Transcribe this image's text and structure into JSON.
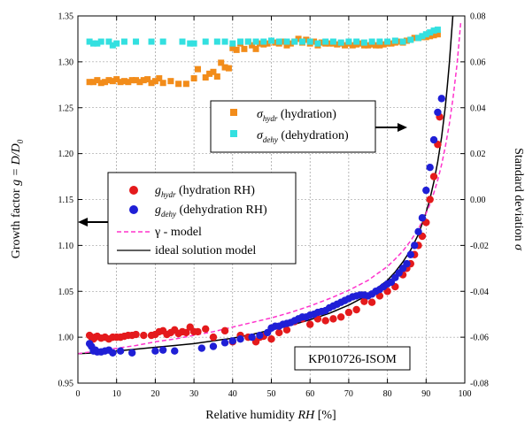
{
  "chart_data": {
    "type": "scatter",
    "xlabel": {
      "pre": "Relative humidity ",
      "var": "RH",
      "post": " [%]"
    },
    "ylabel_left": {
      "pre": "Growth factor  ",
      "var": "g",
      "mid": " = D/D",
      "sub": "0"
    },
    "ylabel_right": {
      "pre": "Standard deviation  ",
      "var": "σ"
    },
    "xlim": [
      0,
      100
    ],
    "ylim_left": [
      0.95,
      1.35
    ],
    "ylim_right": [
      -0.08,
      0.08
    ],
    "x_ticks": [
      "0",
      "10",
      "20",
      "30",
      "40",
      "50",
      "60",
      "70",
      "80",
      "90",
      "100"
    ],
    "y_left_ticks": [
      "0.95",
      "1.00",
      "1.05",
      "1.10",
      "1.15",
      "1.20",
      "1.25",
      "1.30",
      "1.35"
    ],
    "y_right_ticks": [
      "-0.08",
      "-0.06",
      "-0.04",
      "-0.02",
      "0.00",
      "0.02",
      "0.04",
      "0.06",
      "0.08"
    ],
    "grid": true,
    "annotation": "KP010726-ISOM",
    "colors": {
      "red": "#e41a1c",
      "blue": "#1f1fd6",
      "orange": "#f28c1a",
      "cyan": "#33e0e0",
      "magenta": "#ff33cc",
      "black": "#000000"
    },
    "legend_sigma": [
      {
        "sym": "σ",
        "sub": "hydr",
        "text": " (hydration)"
      },
      {
        "sym": "σ",
        "sub": "dehy",
        "text": " (dehydration)"
      }
    ],
    "legend_g": [
      {
        "sym": "g",
        "sub": "hydr",
        "text": " (hydration RH)"
      },
      {
        "sym": "g",
        "sub": "dehy",
        "text": " (dehydration RH)"
      },
      {
        "text": "γ - model"
      },
      {
        "text": "ideal solution model"
      }
    ],
    "series": [
      {
        "name": "g_hydr",
        "axis": "left",
        "marker": "circle",
        "color": "#e41a1c",
        "x": [
          3,
          3.5,
          4,
          4.5,
          5,
          6,
          7,
          8,
          9,
          10,
          11,
          12,
          13,
          14,
          15,
          17,
          19,
          20,
          21,
          22,
          23,
          24,
          25,
          26,
          27,
          28,
          29,
          30,
          31,
          33,
          35,
          38,
          40,
          42,
          44,
          46,
          47,
          48,
          50,
          52,
          54,
          56,
          58,
          60,
          62,
          64,
          66,
          68,
          70,
          72,
          74,
          76,
          78,
          80,
          82,
          84,
          85,
          86,
          87,
          88,
          89,
          90,
          91,
          92,
          93,
          93.5
        ],
        "y": [
          1.002,
          1.0,
          0.998,
          1.0,
          1.001,
          0.999,
          1.0,
          0.998,
          1.0,
          1.0,
          1.0,
          1.001,
          1.002,
          1.002,
          1.003,
          1.002,
          1.002,
          1.003,
          1.006,
          1.007,
          1.003,
          1.005,
          1.008,
          1.004,
          1.006,
          1.005,
          1.011,
          1.006,
          1.006,
          1.009,
          1.0,
          1.007,
          0.995,
          1.002,
          1.0,
          0.995,
          1.0,
          1.001,
          0.998,
          1.005,
          1.008,
          1.017,
          1.02,
          1.014,
          1.02,
          1.018,
          1.02,
          1.022,
          1.027,
          1.03,
          1.039,
          1.038,
          1.045,
          1.05,
          1.055,
          1.068,
          1.075,
          1.08,
          1.09,
          1.1,
          1.11,
          1.125,
          1.15,
          1.175,
          1.21,
          1.24
        ]
      },
      {
        "name": "g_dehy",
        "axis": "left",
        "marker": "circle",
        "color": "#1f1fd6",
        "x": [
          3,
          3.5,
          4,
          4.5,
          5,
          6,
          7,
          8,
          9,
          11,
          14,
          20,
          22,
          25,
          32,
          35,
          38,
          40,
          42,
          45,
          47,
          49,
          50,
          51,
          52,
          53,
          54,
          55,
          56,
          57,
          58,
          59,
          60,
          61,
          62,
          63,
          64,
          65,
          66,
          67,
          68,
          69,
          70,
          71,
          72,
          73,
          74,
          75,
          76,
          77,
          78,
          79,
          80,
          81,
          82,
          83,
          84,
          85,
          86,
          87,
          88,
          89,
          90,
          91,
          92,
          93,
          94
        ],
        "y": [
          0.993,
          0.99,
          0.985,
          0.986,
          0.984,
          0.984,
          0.985,
          0.986,
          0.983,
          0.985,
          0.983,
          0.985,
          0.986,
          0.985,
          0.988,
          0.99,
          0.994,
          0.996,
          0.998,
          1.0,
          1.002,
          1.005,
          1.01,
          1.012,
          1.012,
          1.014,
          1.015,
          1.016,
          1.018,
          1.02,
          1.022,
          1.022,
          1.024,
          1.025,
          1.027,
          1.028,
          1.029,
          1.032,
          1.034,
          1.036,
          1.038,
          1.04,
          1.042,
          1.044,
          1.045,
          1.046,
          1.046,
          1.045,
          1.047,
          1.05,
          1.052,
          1.055,
          1.058,
          1.06,
          1.065,
          1.07,
          1.075,
          1.08,
          1.09,
          1.1,
          1.115,
          1.13,
          1.16,
          1.185,
          1.215,
          1.245,
          1.26
        ]
      },
      {
        "name": "sigma_hydr",
        "axis": "right",
        "marker": "square",
        "color": "#f28c1a",
        "x": [
          3,
          4,
          5,
          6,
          7,
          8,
          9,
          10,
          11,
          12,
          13,
          14,
          15,
          16,
          17,
          18,
          19,
          20,
          21,
          22,
          24,
          26,
          28,
          30,
          31,
          33,
          34,
          35,
          36,
          37,
          38,
          39,
          40,
          41,
          42,
          43,
          44,
          45,
          46,
          47,
          48,
          49,
          50,
          51,
          52,
          53,
          54,
          55,
          56,
          57,
          58,
          59,
          60,
          61,
          62,
          63,
          64,
          65,
          66,
          67,
          68,
          69,
          70,
          71,
          72,
          73,
          74,
          75,
          76,
          77,
          78,
          79,
          80,
          81,
          82,
          83,
          84,
          85,
          86,
          87,
          88,
          89,
          90,
          91,
          92,
          93
        ],
        "y": [
          1.278,
          1.278,
          1.28,
          1.277,
          1.278,
          1.28,
          1.279,
          1.281,
          1.278,
          1.279,
          1.278,
          1.28,
          1.28,
          1.278,
          1.28,
          1.281,
          1.277,
          1.279,
          1.282,
          1.277,
          1.279,
          1.276,
          1.276,
          1.282,
          1.292,
          1.283,
          1.287,
          1.289,
          1.284,
          1.299,
          1.294,
          1.293,
          1.315,
          1.313,
          1.32,
          1.314,
          1.322,
          1.318,
          1.314,
          1.32,
          1.319,
          1.32,
          1.323,
          1.321,
          1.32,
          1.322,
          1.318,
          1.32,
          1.322,
          1.325,
          1.321,
          1.324,
          1.32,
          1.322,
          1.318,
          1.321,
          1.32,
          1.32,
          1.32,
          1.319,
          1.32,
          1.318,
          1.32,
          1.318,
          1.319,
          1.32,
          1.318,
          1.318,
          1.319,
          1.318,
          1.318,
          1.319,
          1.32,
          1.32,
          1.321,
          1.322,
          1.321,
          1.323,
          1.324,
          1.326,
          1.326,
          1.327,
          1.327,
          1.328,
          1.329,
          1.33
        ]
      },
      {
        "name": "sigma_dehy",
        "axis": "right",
        "marker": "square",
        "color": "#33e0e0",
        "x": [
          3,
          4,
          5,
          6,
          8,
          9,
          10,
          12,
          15,
          19,
          22,
          27,
          29,
          30,
          33,
          36,
          38,
          40,
          42,
          44,
          46,
          48,
          50,
          52,
          54,
          56,
          58,
          60,
          62,
          64,
          66,
          68,
          70,
          72,
          74,
          76,
          78,
          80,
          82,
          84,
          86,
          88,
          89,
          90,
          91,
          92,
          93
        ],
        "y": [
          1.322,
          1.32,
          1.32,
          1.322,
          1.322,
          1.318,
          1.32,
          1.322,
          1.322,
          1.322,
          1.322,
          1.322,
          1.32,
          1.32,
          1.322,
          1.322,
          1.322,
          1.32,
          1.322,
          1.322,
          1.322,
          1.322,
          1.323,
          1.322,
          1.322,
          1.322,
          1.322,
          1.322,
          1.32,
          1.322,
          1.322,
          1.321,
          1.322,
          1.322,
          1.321,
          1.322,
          1.322,
          1.322,
          1.323,
          1.322,
          1.324,
          1.326,
          1.328,
          1.33,
          1.332,
          1.334,
          1.335
        ]
      },
      {
        "name": "γ - model",
        "axis": "left",
        "marker": "dash-line",
        "color": "#ff33cc",
        "x": [
          0,
          5,
          10,
          15,
          20,
          25,
          30,
          35,
          40,
          45,
          50,
          55,
          60,
          65,
          70,
          75,
          80,
          82,
          84,
          86,
          88,
          90,
          91,
          92,
          93,
          94,
          95,
          96,
          97,
          98,
          99
        ],
        "y": [
          0.982,
          0.985,
          0.988,
          0.991,
          0.995,
          0.998,
          1.002,
          1.006,
          1.011,
          1.016,
          1.021,
          1.027,
          1.034,
          1.042,
          1.051,
          1.062,
          1.077,
          1.085,
          1.094,
          1.105,
          1.118,
          1.135,
          1.145,
          1.157,
          1.171,
          1.188,
          1.208,
          1.232,
          1.262,
          1.298,
          1.345
        ]
      },
      {
        "name": "ideal solution model",
        "axis": "left",
        "marker": "line",
        "color": "#000000",
        "x": [
          0,
          5,
          10,
          15,
          20,
          25,
          30,
          35,
          40,
          45,
          50,
          55,
          60,
          65,
          70,
          75,
          80,
          82,
          84,
          86,
          88,
          90,
          91,
          92,
          93,
          94,
          95,
          95.5,
          96,
          96.5,
          97
        ],
        "y": [
          0.982,
          0.983,
          0.985,
          0.987,
          0.989,
          0.991,
          0.993,
          0.996,
          0.999,
          1.003,
          1.008,
          1.013,
          1.019,
          1.026,
          1.035,
          1.046,
          1.062,
          1.071,
          1.082,
          1.095,
          1.112,
          1.136,
          1.151,
          1.169,
          1.191,
          1.218,
          1.252,
          1.274,
          1.298,
          1.327,
          1.355
        ]
      }
    ]
  }
}
